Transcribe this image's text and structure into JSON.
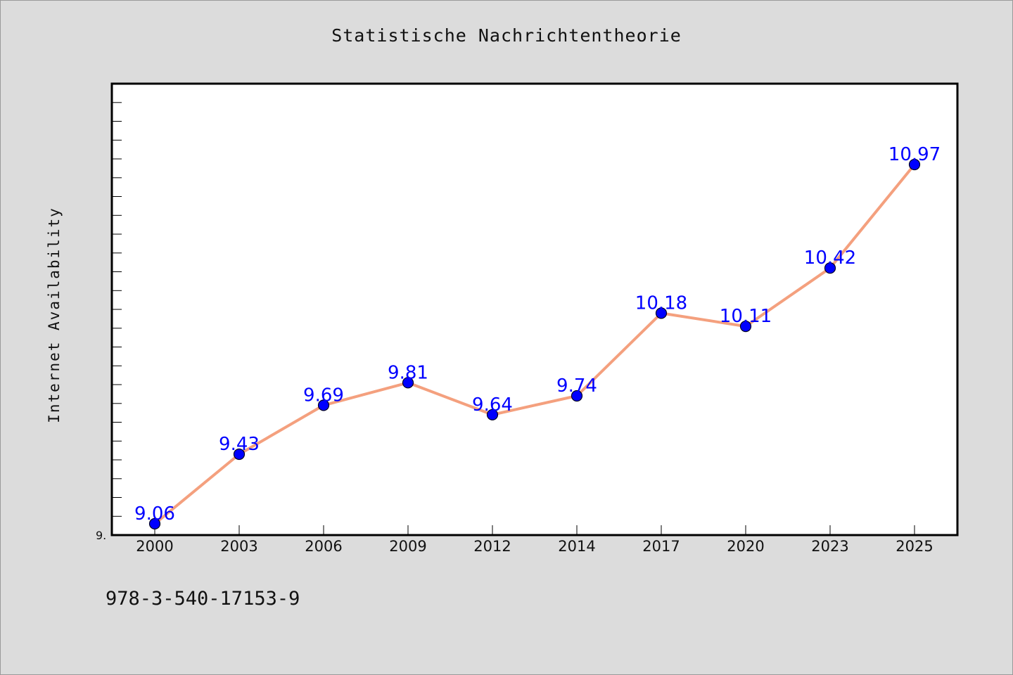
{
  "footer": {
    "code": "978-3-540-17153-9"
  },
  "colors": {
    "background": "#dcdcdc",
    "plot_background": "#ffffff",
    "line": "#f4a07e",
    "marker": "#0000ff",
    "data_label": "#0000ff"
  },
  "chart_data": {
    "type": "line",
    "title": "Statistische Nachrichtentheorie",
    "xlabel": "",
    "ylabel": "Internet Availability",
    "categories": [
      "2000",
      "2003",
      "2006",
      "2009",
      "2012",
      "2014",
      "2017",
      "2020",
      "2023",
      "2025"
    ],
    "series": [
      {
        "values": [
          9.06,
          9.43,
          9.69,
          9.81,
          9.64,
          9.74,
          10.18,
          10.11,
          10.42,
          10.97
        ],
        "labels": [
          "9.06",
          "9.43",
          "9.69",
          "9.81",
          "9.64",
          "9.74",
          "10.18",
          "10.11",
          "10.42",
          "10.97"
        ]
      }
    ],
    "ylim": [
      9.0,
      11.4
    ],
    "y_tick_labels": [
      "9."
    ],
    "grid": false,
    "legend": "none"
  }
}
